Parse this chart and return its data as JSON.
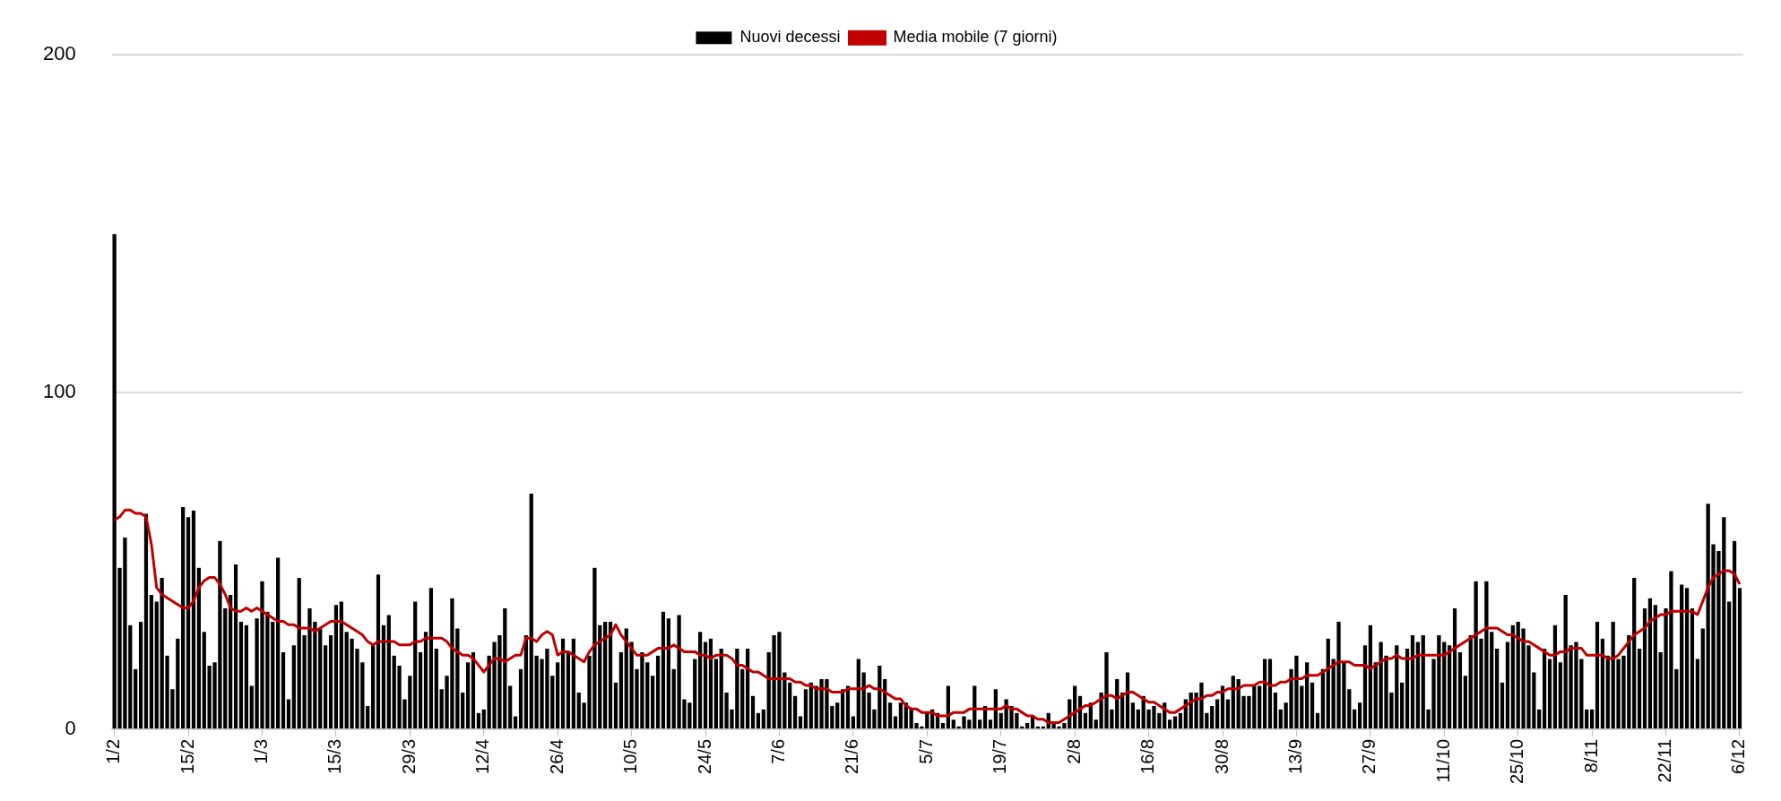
{
  "chart_data": {
    "type": "bar",
    "legend": "top",
    "grid": "y",
    "ylim": [
      0,
      200
    ],
    "yticks": [
      0,
      100,
      200
    ],
    "categories": [
      "1/2",
      null,
      null,
      null,
      null,
      null,
      null,
      null,
      null,
      null,
      null,
      null,
      null,
      null,
      "15/2",
      null,
      null,
      null,
      null,
      null,
      null,
      null,
      null,
      null,
      null,
      null,
      null,
      null,
      "1/3",
      null,
      null,
      null,
      null,
      null,
      null,
      null,
      null,
      null,
      null,
      null,
      null,
      null,
      "15/3",
      null,
      null,
      null,
      null,
      null,
      null,
      null,
      null,
      null,
      null,
      null,
      null,
      null,
      "29/3",
      null,
      null,
      null,
      null,
      null,
      null,
      null,
      null,
      null,
      null,
      null,
      null,
      null,
      "12/4",
      null,
      null,
      null,
      null,
      null,
      null,
      null,
      null,
      null,
      null,
      null,
      null,
      null,
      "26/4",
      null,
      null,
      null,
      null,
      null,
      null,
      null,
      null,
      null,
      null,
      null,
      null,
      null,
      "10/5",
      null,
      null,
      null,
      null,
      null,
      null,
      null,
      null,
      null,
      null,
      null,
      null,
      null,
      "24/5",
      null,
      null,
      null,
      null,
      null,
      null,
      null,
      null,
      null,
      null,
      null,
      null,
      null,
      "7/6",
      null,
      null,
      null,
      null,
      null,
      null,
      null,
      null,
      null,
      null,
      null,
      null,
      null,
      "21/6",
      null,
      null,
      null,
      null,
      null,
      null,
      null,
      null,
      null,
      null,
      null,
      null,
      null,
      "5/7",
      null,
      null,
      null,
      null,
      null,
      null,
      null,
      null,
      null,
      null,
      null,
      null,
      null,
      "19/7",
      null,
      null,
      null,
      null,
      null,
      null,
      null,
      null,
      null,
      null,
      null,
      null,
      null,
      "2/8",
      null,
      null,
      null,
      null,
      null,
      null,
      null,
      null,
      null,
      null,
      null,
      null,
      null,
      "16/8",
      null,
      null,
      null,
      null,
      null,
      null,
      null,
      null,
      null,
      null,
      null,
      null,
      null,
      "30/8",
      null,
      null,
      null,
      null,
      null,
      null,
      null,
      null,
      null,
      null,
      null,
      null,
      null,
      "13/9",
      null,
      null,
      null,
      null,
      null,
      null,
      null,
      null,
      null,
      null,
      null,
      null,
      null,
      "27/9",
      null,
      null,
      null,
      null,
      null,
      null,
      null,
      null,
      null,
      null,
      null,
      null,
      null,
      "11/10",
      null,
      null,
      null,
      null,
      null,
      null,
      null,
      null,
      null,
      null,
      null,
      null,
      null,
      "25/10",
      null,
      null,
      null,
      null,
      null,
      null,
      null,
      null,
      null,
      null,
      null,
      null,
      null,
      "8/11",
      null,
      null,
      null,
      null,
      null,
      null,
      null,
      null,
      null,
      null,
      null,
      null,
      null,
      "22/11",
      null,
      null,
      null,
      null,
      null,
      null,
      null,
      null,
      null,
      null,
      null,
      null,
      null,
      "6/12"
    ],
    "series": [
      {
        "name": "Nuovi decessi",
        "color": "#000000",
        "values": [
          147,
          48,
          57,
          31,
          18,
          32,
          64,
          40,
          38,
          45,
          22,
          12,
          27,
          66,
          63,
          65,
          48,
          29,
          19,
          20,
          56,
          36,
          40,
          49,
          32,
          31,
          13,
          33,
          44,
          35,
          32,
          51,
          23,
          9,
          25,
          45,
          28,
          36,
          32,
          30,
          25,
          28,
          37,
          38,
          29,
          27,
          24,
          20,
          7,
          25,
          46,
          31,
          34,
          22,
          19,
          9,
          16,
          38,
          23,
          29,
          42,
          24,
          12,
          16,
          39,
          30,
          11,
          20,
          23,
          5,
          6,
          22,
          26,
          28,
          36,
          13,
          4,
          18,
          28,
          70,
          22,
          21,
          24,
          16,
          20,
          27,
          23,
          27,
          11,
          8,
          22,
          48,
          31,
          32,
          32,
          14,
          23,
          30,
          26,
          18,
          23,
          20,
          16,
          22,
          35,
          33,
          18,
          34,
          9,
          8,
          21,
          29,
          26,
          27,
          21,
          24,
          11,
          6,
          24,
          18,
          24,
          10,
          5,
          6,
          23,
          28,
          29,
          17,
          14,
          10,
          4,
          12,
          14,
          13,
          15,
          15,
          7,
          8,
          12,
          13,
          4,
          21,
          17,
          11,
          6,
          19,
          15,
          8,
          4,
          8,
          8,
          6,
          2,
          1,
          5,
          6,
          5,
          2,
          13,
          3,
          1,
          4,
          3,
          13,
          3,
          7,
          3,
          12,
          5,
          9,
          7,
          5,
          1,
          2,
          4,
          1,
          1,
          5,
          2,
          1,
          2,
          9,
          13,
          10,
          5,
          8,
          3,
          11,
          23,
          6,
          15,
          11,
          17,
          8,
          6,
          10,
          6,
          7,
          5,
          8,
          3,
          4,
          5,
          9,
          11,
          11,
          14,
          5,
          7,
          9,
          13,
          9,
          16,
          15,
          10,
          10,
          13,
          13,
          21,
          21,
          11,
          6,
          8,
          18,
          22,
          13,
          20,
          14,
          5,
          18,
          27,
          21,
          32,
          20,
          12,
          6,
          8,
          25,
          31,
          20,
          26,
          22,
          11,
          25,
          14,
          24,
          28,
          26,
          28,
          6,
          21,
          28,
          26,
          25,
          36,
          23,
          16,
          28,
          44,
          27,
          44,
          29,
          24,
          14,
          26,
          31,
          32,
          30,
          25,
          17,
          6,
          24,
          21,
          31,
          20,
          40,
          25,
          26,
          21,
          6,
          6,
          32,
          27,
          22,
          32,
          21,
          22,
          28,
          45,
          24,
          36,
          39,
          37,
          23,
          36,
          47,
          18,
          43,
          42,
          36,
          21,
          30,
          67,
          55,
          53,
          63,
          38,
          56,
          42
        ]
      },
      {
        "name": "Media mobile (7 giorni)",
        "type": "line",
        "color": "#c00000",
        "values": [
          62,
          63,
          65,
          65,
          64,
          64,
          63,
          55,
          42,
          40,
          39,
          38,
          37,
          36,
          36,
          38,
          42,
          44,
          45,
          45,
          43,
          40,
          36,
          35,
          35,
          36,
          35,
          36,
          35,
          34,
          33,
          32,
          32,
          31,
          31,
          30,
          30,
          30,
          29,
          30,
          31,
          32,
          32,
          32,
          31,
          30,
          29,
          28,
          26,
          25,
          26,
          26,
          26,
          26,
          25,
          25,
          25,
          26,
          26,
          27,
          27,
          27,
          27,
          26,
          24,
          23,
          22,
          22,
          21,
          19,
          17,
          19,
          21,
          21,
          20,
          21,
          22,
          22,
          27,
          27,
          26,
          28,
          29,
          28,
          22,
          23,
          23,
          22,
          21,
          20,
          23,
          25,
          26,
          27,
          28,
          31,
          28,
          26,
          24,
          22,
          22,
          22,
          23,
          24,
          24,
          24,
          25,
          24,
          23,
          23,
          23,
          22,
          22,
          21,
          22,
          22,
          22,
          21,
          19,
          19,
          18,
          17,
          17,
          16,
          15,
          15,
          15,
          15,
          15,
          14,
          14,
          13,
          13,
          12,
          12,
          12,
          11,
          11,
          11,
          12,
          12,
          12,
          12,
          13,
          12,
          12,
          11,
          10,
          9,
          9,
          7,
          6,
          6,
          5,
          5,
          5,
          4,
          4,
          4,
          5,
          5,
          5,
          6,
          6,
          6,
          6,
          6,
          6,
          6,
          7,
          6,
          6,
          5,
          4,
          4,
          3,
          3,
          2,
          2,
          2,
          3,
          4,
          5,
          6,
          7,
          7,
          8,
          9,
          10,
          10,
          9,
          10,
          11,
          11,
          10,
          9,
          8,
          8,
          7,
          6,
          5,
          5,
          6,
          7,
          8,
          9,
          9,
          10,
          10,
          11,
          11,
          12,
          12,
          12,
          13,
          13,
          13,
          14,
          14,
          13,
          13,
          14,
          14,
          15,
          15,
          15,
          16,
          16,
          16,
          17,
          18,
          19,
          20,
          20,
          20,
          19,
          19,
          19,
          18,
          19,
          20,
          21,
          21,
          22,
          21,
          21,
          21,
          22,
          22,
          22,
          22,
          22,
          22,
          23,
          24,
          25,
          26,
          27,
          28,
          29,
          30,
          30,
          30,
          29,
          28,
          28,
          27,
          26,
          26,
          25,
          24,
          23,
          22,
          22,
          23,
          23,
          24,
          24,
          24,
          22,
          22,
          22,
          22,
          21,
          21,
          22,
          24,
          26,
          28,
          29,
          30,
          32,
          33,
          34,
          34,
          35,
          35,
          35,
          35,
          35,
          34,
          38,
          42,
          45,
          46,
          47,
          47,
          46,
          43
        ]
      }
    ]
  }
}
